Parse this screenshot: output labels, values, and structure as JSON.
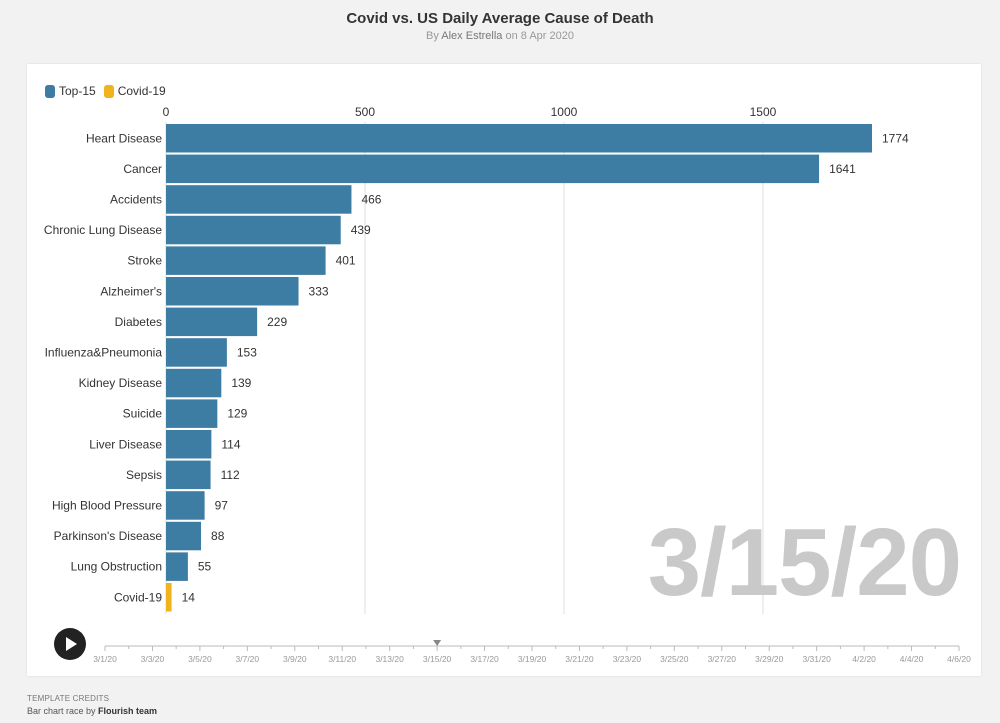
{
  "header": {
    "title": "Covid vs. US Daily Average Cause of Death",
    "by": "By",
    "author": "Alex Estrella",
    "on": "on 8 Apr 2020"
  },
  "legend": [
    {
      "label": "Top-15",
      "color": "#3d7ca3"
    },
    {
      "label": "Covid-19",
      "color": "#f0b31d"
    }
  ],
  "current_date": "3/15/20",
  "timeline": {
    "dates": [
      "3/1/20",
      "3/3/20",
      "3/5/20",
      "3/7/20",
      "3/9/20",
      "3/11/20",
      "3/13/20",
      "3/15/20",
      "3/17/20",
      "3/19/20",
      "3/21/20",
      "3/23/20",
      "3/25/20",
      "3/27/20",
      "3/29/20",
      "3/31/20",
      "4/2/20",
      "4/4/20",
      "4/6/20"
    ],
    "current_index": 7
  },
  "credits": {
    "heading": "TEMPLATE CREDITS",
    "text": "Bar chart race by",
    "team": "Flourish team"
  },
  "chart_data": {
    "type": "bar",
    "orientation": "horizontal",
    "xlim": [
      0,
      1774
    ],
    "ticks": [
      0,
      500,
      1000,
      1500
    ],
    "grid": true,
    "legend_position": "top-left",
    "categories": [
      "Heart Disease",
      "Cancer",
      "Accidents",
      "Chronic Lung Disease",
      "Stroke",
      "Alzheimer's",
      "Diabetes",
      "Influenza&Pneumonia",
      "Kidney Disease",
      "Suicide",
      "Liver Disease",
      "Sepsis",
      "High Blood Pressure",
      "Parkinson's Disease",
      "Lung Obstruction",
      "Covid-19"
    ],
    "values": [
      1774,
      1641,
      466,
      439,
      401,
      333,
      229,
      153,
      139,
      129,
      114,
      112,
      97,
      88,
      55,
      14
    ],
    "groups": [
      "Top-15",
      "Top-15",
      "Top-15",
      "Top-15",
      "Top-15",
      "Top-15",
      "Top-15",
      "Top-15",
      "Top-15",
      "Top-15",
      "Top-15",
      "Top-15",
      "Top-15",
      "Top-15",
      "Top-15",
      "Covid-19"
    ]
  }
}
